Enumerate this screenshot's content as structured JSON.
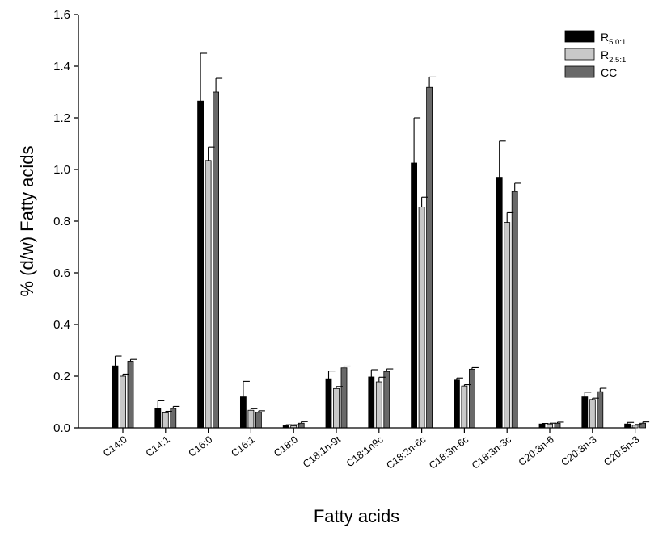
{
  "chart_data": {
    "type": "bar",
    "title": "",
    "xlabel": "Fatty acids",
    "ylabel": "% (d/w) Fatty acids",
    "ylim": [
      0,
      1.6
    ],
    "yticks": [
      "0.0",
      "0.2",
      "0.4",
      "0.6",
      "0.8",
      "1.0",
      "1.2",
      "1.4",
      "1.6"
    ],
    "grid": false,
    "legend_position": "top-right",
    "categories": [
      "C14:0",
      "C14:1",
      "C16:0",
      "C16:1",
      "C18:0",
      "C18:1n-9t",
      "C18:1n9c",
      "C18:2n-6c",
      "C18:3n-6c",
      "C18:3n-3c",
      "C20:3n-6",
      "C20:3n-3",
      "C20:5n-3"
    ],
    "series": [
      {
        "name": "R5.0:1",
        "legend_main": "R",
        "legend_sub": "5.0:1",
        "color": "#000000",
        "values": [
          0.24,
          0.075,
          1.265,
          0.12,
          0.008,
          0.19,
          0.197,
          1.025,
          0.185,
          0.97,
          0.015,
          0.12,
          0.015
        ],
        "errors": [
          0.038,
          0.03,
          0.185,
          0.06,
          0.004,
          0.03,
          0.028,
          0.175,
          0.008,
          0.14,
          0.002,
          0.018,
          0.006
        ]
      },
      {
        "name": "R2.5:1",
        "legend_main": "R",
        "legend_sub": "2.5:1",
        "color": "#c8c8c8",
        "values": [
          0.2,
          0.058,
          1.035,
          0.068,
          0.008,
          0.152,
          0.178,
          0.855,
          0.162,
          0.795,
          0.015,
          0.11,
          0.01
        ],
        "errors": [
          0.008,
          0.006,
          0.052,
          0.006,
          0.004,
          0.008,
          0.018,
          0.038,
          0.005,
          0.038,
          0.003,
          0.005,
          0.003
        ]
      },
      {
        "name": "CC",
        "legend_main": "CC",
        "legend_sub": "",
        "color": "#696969",
        "values": [
          0.258,
          0.075,
          1.3,
          0.06,
          0.018,
          0.232,
          0.218,
          1.318,
          0.227,
          0.915,
          0.018,
          0.14,
          0.018
        ],
        "errors": [
          0.007,
          0.008,
          0.053,
          0.006,
          0.006,
          0.007,
          0.01,
          0.04,
          0.006,
          0.032,
          0.004,
          0.013,
          0.005
        ]
      }
    ]
  }
}
